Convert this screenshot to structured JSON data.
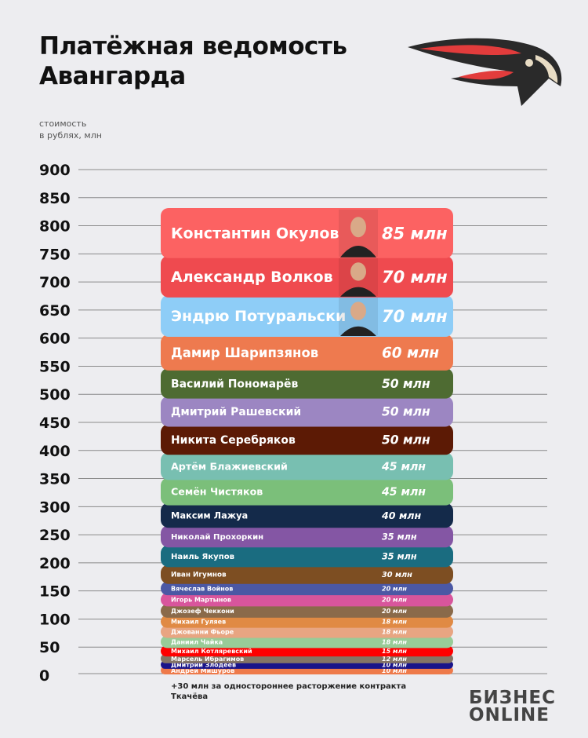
{
  "header": {
    "title_line1": "Платёжная ведомость",
    "title_line2": "Авангарда"
  },
  "unit_line1": "стоимость",
  "unit_line2": "в рублях, млн",
  "note": "+30 млн за одностороннее расторжение контракта Ткачёва",
  "brand": {
    "line1": "БИЗНЕС",
    "line2": "ONLINE"
  },
  "chart_data": {
    "type": "bar",
    "stacked": true,
    "ylabel": "стоимость в рублях, млн",
    "ylim": [
      0,
      900
    ],
    "yticks": [
      0,
      50,
      100,
      150,
      200,
      250,
      300,
      350,
      400,
      450,
      500,
      550,
      600,
      650,
      700,
      750,
      800,
      850,
      900
    ],
    "grid": true,
    "value_suffix": " млн",
    "series": [
      {
        "name": "Константин Окулов",
        "value": 85,
        "label": "85 млн",
        "color": "#fc6262",
        "photo": true
      },
      {
        "name": "Александр Волков",
        "value": 70,
        "label": "70 млн",
        "color": "#ef4a4f",
        "photo": true
      },
      {
        "name": "Эндрю Потуральски",
        "value": 70,
        "label": "70 млн",
        "color": "#8ecdf7",
        "photo": true
      },
      {
        "name": "Дамир Шарипзянов",
        "value": 60,
        "label": "60 млн",
        "color": "#ee7a4f"
      },
      {
        "name": "Василий Пономарёв",
        "value": 50,
        "label": "50 млн",
        "color": "#4e6b32"
      },
      {
        "name": "Дмитрий Рашевский",
        "value": 50,
        "label": "50 млн",
        "color": "#9c86c2"
      },
      {
        "name": "Никита Серебряков",
        "value": 50,
        "label": "50 млн",
        "color": "#5c1a05"
      },
      {
        "name": "Артём Блажиевский",
        "value": 45,
        "label": "45 млн",
        "color": "#78bfb1"
      },
      {
        "name": "Семён Чистяков",
        "value": 45,
        "label": "45 млн",
        "color": "#7bbf7a"
      },
      {
        "name": "Максим Лажуа",
        "value": 40,
        "label": "40 млн",
        "color": "#142a4a"
      },
      {
        "name": "Николай Прохоркин",
        "value": 35,
        "label": "35 млн",
        "color": "#8456a4"
      },
      {
        "name": "Наиль Якупов",
        "value": 35,
        "label": "35 млн",
        "color": "#1a6c80"
      },
      {
        "name": "Иван Игумнов",
        "value": 30,
        "label": "30 млн",
        "color": "#7d4e22"
      },
      {
        "name": "Вячеслав Войнов",
        "value": 20,
        "label": "20 млн",
        "color": "#4b58a4"
      },
      {
        "name": "Игорь Мартынов",
        "value": 20,
        "label": "20 млн",
        "color": "#d8559c"
      },
      {
        "name": "Джозеф Чеккони",
        "value": 20,
        "label": "20 млн",
        "color": "#8a6a4a"
      },
      {
        "name": "Михаил Гуляев",
        "value": 18,
        "label": "18 млн",
        "color": "#e08a44"
      },
      {
        "name": "Джованни Фьоре",
        "value": 18,
        "label": "18 млн",
        "color": "#e8a582"
      },
      {
        "name": "Даниил Чайка",
        "value": 18,
        "label": "18 млн",
        "color": "#98cc98"
      },
      {
        "name": "Михаил Котляревский",
        "value": 15,
        "label": "15 млн",
        "color": "#ff0000"
      },
      {
        "name": "Марсель Ибрагимов",
        "value": 12,
        "label": "12 млн",
        "color": "#857565"
      },
      {
        "name": "Дмитрий Злодеев",
        "value": 10,
        "label": "10 млн",
        "color": "#19148a"
      },
      {
        "name": "Андрей Мишуров",
        "value": 10,
        "label": "10 млн",
        "color": "#ee7a4a"
      }
    ]
  }
}
